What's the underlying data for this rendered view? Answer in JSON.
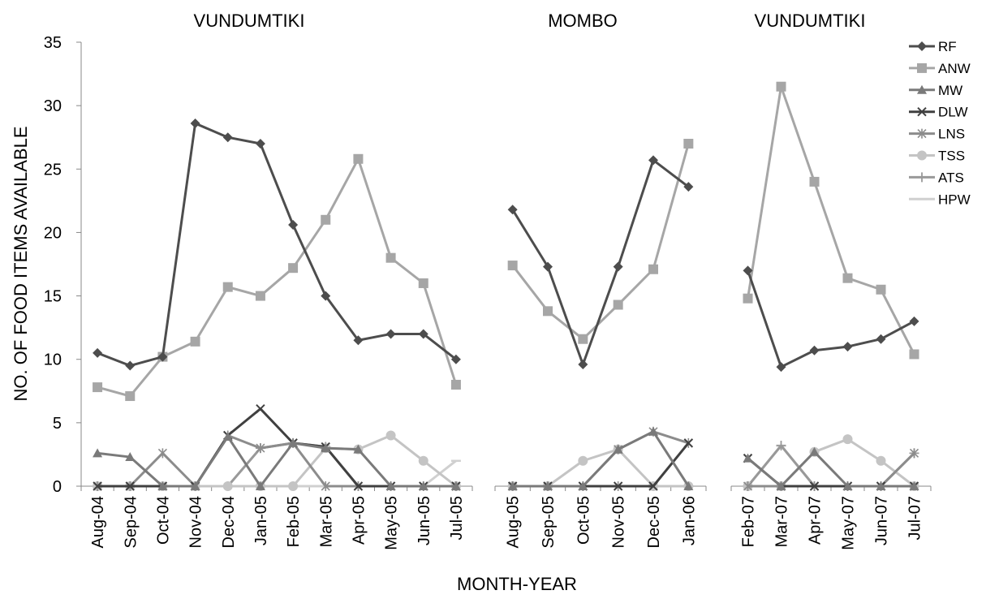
{
  "chart_data": {
    "type": "line",
    "ylabel": "NO. OF FOOD ITEMS AVAILABLE",
    "xlabel": "MONTH-YEAR",
    "ylim": [
      0,
      35
    ],
    "yticks": [
      0,
      5,
      10,
      15,
      20,
      25,
      30,
      35
    ],
    "grid": false,
    "legend_position": "right",
    "series_styles": [
      {
        "name": "RF",
        "color": "#4d4d4d",
        "marker": "diamond"
      },
      {
        "name": "ANW",
        "color": "#a6a6a6",
        "marker": "square"
      },
      {
        "name": "MW",
        "color": "#7a7a7a",
        "marker": "triangle"
      },
      {
        "name": "DLW",
        "color": "#404040",
        "marker": "x"
      },
      {
        "name": "LNS",
        "color": "#8c8c8c",
        "marker": "star"
      },
      {
        "name": "TSS",
        "color": "#c4c4c4",
        "marker": "circle"
      },
      {
        "name": "ATS",
        "color": "#999999",
        "marker": "plus"
      },
      {
        "name": "HPW",
        "color": "#d0d0d0",
        "marker": "dash"
      }
    ],
    "panels": [
      {
        "title": "VUNDUMTIKI",
        "categories": [
          "Aug-04",
          "Sep-04",
          "Oct-04",
          "Nov-04",
          "Dec-04",
          "Jan-05",
          "Feb-05",
          "Mar-05",
          "Apr-05",
          "May-05",
          "Jun-05",
          "Jul-05"
        ],
        "series": [
          {
            "name": "RF",
            "values": [
              10.5,
              9.5,
              10.2,
              28.6,
              27.5,
              27.0,
              20.6,
              15.0,
              11.5,
              12.0,
              12.0,
              10.0
            ]
          },
          {
            "name": "ANW",
            "values": [
              7.8,
              7.1,
              10.2,
              11.4,
              15.7,
              15.0,
              17.2,
              21.0,
              25.8,
              18.0,
              16.0,
              8.0
            ]
          },
          {
            "name": "MW",
            "values": [
              2.6,
              2.3,
              0,
              0,
              3.9,
              0,
              3.4,
              3.0,
              2.9,
              0,
              0,
              0
            ]
          },
          {
            "name": "DLW",
            "values": [
              0,
              0,
              0,
              0,
              4.0,
              6.1,
              3.4,
              3.1,
              0,
              0,
              0,
              0
            ]
          },
          {
            "name": "LNS",
            "values": [
              0,
              0,
              2.6,
              0,
              4.0,
              3.0,
              3.4,
              0,
              0,
              0,
              0,
              0
            ]
          },
          {
            "name": "TSS",
            "values": [
              0,
              0,
              0,
              0,
              0,
              0,
              0,
              3.0,
              2.9,
              4.0,
              2.0,
              0
            ]
          },
          {
            "name": "ATS",
            "values": [
              0,
              0,
              0,
              0,
              0,
              3.0,
              3.4,
              3.1,
              0,
              0,
              0,
              0
            ]
          },
          {
            "name": "HPW",
            "values": [
              0,
              0,
              0,
              0,
              0,
              0,
              0,
              0,
              0,
              0,
              0,
              2.0
            ]
          }
        ]
      },
      {
        "title": "MOMBO",
        "categories": [
          "Aug-05",
          "Sep-05",
          "Oct-05",
          "Nov-05",
          "Dec-05",
          "Jan-06"
        ],
        "series": [
          {
            "name": "RF",
            "values": [
              21.8,
              17.3,
              9.6,
              17.3,
              25.7,
              23.6
            ]
          },
          {
            "name": "ANW",
            "values": [
              17.4,
              13.8,
              11.6,
              14.3,
              17.1,
              27.0
            ]
          },
          {
            "name": "MW",
            "values": [
              0,
              0,
              0,
              2.9,
              4.3,
              0
            ]
          },
          {
            "name": "DLW",
            "values": [
              0,
              0,
              0,
              0,
              0,
              3.4
            ]
          },
          {
            "name": "LNS",
            "values": [
              0,
              0,
              0,
              2.9,
              4.3,
              3.4
            ]
          },
          {
            "name": "TSS",
            "values": [
              0,
              0,
              2.0,
              2.9,
              0,
              0
            ]
          },
          {
            "name": "ATS",
            "values": [
              0,
              0,
              0,
              0,
              0,
              0
            ]
          },
          {
            "name": "HPW",
            "values": [
              0,
              0,
              0,
              0,
              0,
              0
            ]
          }
        ]
      },
      {
        "title": "VUNDUMTIKI",
        "categories": [
          "Feb-07",
          "Mar-07",
          "Apr-07",
          "May-07",
          "Jun-07",
          "Jul-07"
        ],
        "series": [
          {
            "name": "RF",
            "values": [
              17.0,
              9.4,
              10.7,
              11.0,
              11.6,
              13.0
            ]
          },
          {
            "name": "ANW",
            "values": [
              14.8,
              31.5,
              24.0,
              16.4,
              15.5,
              10.4
            ]
          },
          {
            "name": "MW",
            "values": [
              2.2,
              0,
              2.7,
              0,
              0,
              0
            ]
          },
          {
            "name": "DLW",
            "values": [
              2.2,
              0,
              0,
              0,
              0,
              0
            ]
          },
          {
            "name": "LNS",
            "values": [
              0,
              0,
              0,
              0,
              0,
              2.6
            ]
          },
          {
            "name": "TSS",
            "values": [
              0,
              0,
              2.7,
              3.7,
              2.0,
              0
            ]
          },
          {
            "name": "ATS",
            "values": [
              0,
              3.2,
              0,
              0,
              0,
              2.6
            ]
          },
          {
            "name": "HPW",
            "values": [
              0,
              3.2,
              0,
              0,
              0,
              0
            ]
          }
        ]
      }
    ]
  }
}
